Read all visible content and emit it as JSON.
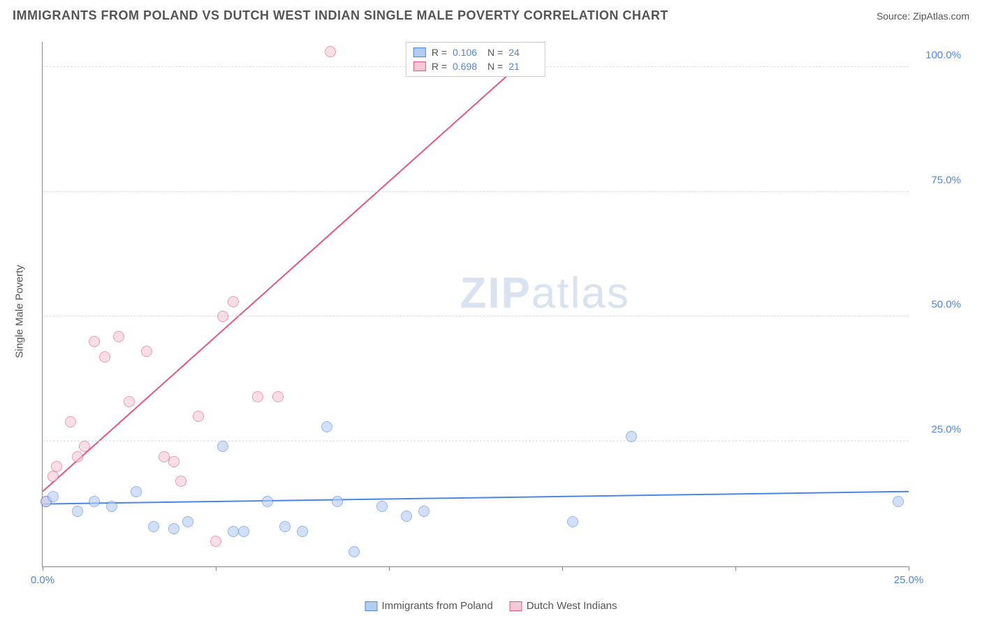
{
  "header": {
    "title": "IMMIGRANTS FROM POLAND VS DUTCH WEST INDIAN SINGLE MALE POVERTY CORRELATION CHART",
    "source": "Source: ZipAtlas.com"
  },
  "watermark": {
    "prefix": "ZIP",
    "suffix": "atlas"
  },
  "chart": {
    "type": "scatter",
    "y_title": "Single Male Poverty",
    "background_color": "#ffffff",
    "grid_color": "#dddddd",
    "axis_color": "#888888",
    "label_color": "#4a86e8",
    "label_fontsize": 15,
    "xlim": [
      0,
      25
    ],
    "ylim": [
      0,
      105
    ],
    "x_ticks": [
      0,
      5,
      10,
      15,
      20,
      25
    ],
    "x_tick_labels": [
      "0.0%",
      "",
      "",
      "",
      "",
      "25.0%"
    ],
    "y_ticks": [
      25,
      50,
      75,
      100
    ],
    "y_tick_labels": [
      "25.0%",
      "50.0%",
      "75.0%",
      "100.0%"
    ],
    "marker_size": 16,
    "marker_opacity": 0.6,
    "series": {
      "blue": {
        "label": "Immigrants from Poland",
        "fill": "#b3cdf2",
        "stroke": "#4a86e8",
        "R": "0.106",
        "N": "24",
        "points": [
          {
            "x": 0.1,
            "y": 13
          },
          {
            "x": 0.3,
            "y": 14
          },
          {
            "x": 1.0,
            "y": 11
          },
          {
            "x": 1.5,
            "y": 13
          },
          {
            "x": 2.0,
            "y": 12
          },
          {
            "x": 2.7,
            "y": 15
          },
          {
            "x": 3.2,
            "y": 8
          },
          {
            "x": 3.8,
            "y": 7.5
          },
          {
            "x": 4.2,
            "y": 9
          },
          {
            "x": 5.2,
            "y": 24
          },
          {
            "x": 5.5,
            "y": 7
          },
          {
            "x": 5.8,
            "y": 7
          },
          {
            "x": 6.5,
            "y": 13
          },
          {
            "x": 7.0,
            "y": 8
          },
          {
            "x": 7.5,
            "y": 7
          },
          {
            "x": 8.2,
            "y": 28
          },
          {
            "x": 8.5,
            "y": 13
          },
          {
            "x": 9.0,
            "y": 3
          },
          {
            "x": 9.8,
            "y": 12
          },
          {
            "x": 10.5,
            "y": 10
          },
          {
            "x": 11.0,
            "y": 11
          },
          {
            "x": 15.3,
            "y": 9
          },
          {
            "x": 17.0,
            "y": 26
          },
          {
            "x": 24.7,
            "y": 13
          }
        ],
        "trend": {
          "x1": 0,
          "y1": 12.5,
          "x2": 25,
          "y2": 15,
          "color": "#4a86e8",
          "width": 2
        }
      },
      "pink": {
        "label": "Dutch West Indians",
        "fill": "#f8c9d4",
        "stroke": "#e75480",
        "R": "0.698",
        "N": "21",
        "points": [
          {
            "x": 0.1,
            "y": 13
          },
          {
            "x": 0.3,
            "y": 18
          },
          {
            "x": 0.4,
            "y": 20
          },
          {
            "x": 0.8,
            "y": 29
          },
          {
            "x": 1.0,
            "y": 22
          },
          {
            "x": 1.2,
            "y": 24
          },
          {
            "x": 1.5,
            "y": 45
          },
          {
            "x": 1.8,
            "y": 42
          },
          {
            "x": 2.2,
            "y": 46
          },
          {
            "x": 2.5,
            "y": 33
          },
          {
            "x": 3.0,
            "y": 43
          },
          {
            "x": 3.5,
            "y": 22
          },
          {
            "x": 3.8,
            "y": 21
          },
          {
            "x": 4.0,
            "y": 17
          },
          {
            "x": 4.5,
            "y": 30
          },
          {
            "x": 5.0,
            "y": 5
          },
          {
            "x": 5.2,
            "y": 50
          },
          {
            "x": 5.5,
            "y": 53
          },
          {
            "x": 6.2,
            "y": 34
          },
          {
            "x": 6.8,
            "y": 34
          },
          {
            "x": 8.3,
            "y": 103
          }
        ],
        "trend": {
          "x1": 0,
          "y1": 15,
          "x2": 14.5,
          "y2": 105,
          "color": "#e75480",
          "width": 2
        }
      }
    },
    "legend_top": {
      "R_label": "R  =",
      "N_label": "N  ="
    }
  }
}
